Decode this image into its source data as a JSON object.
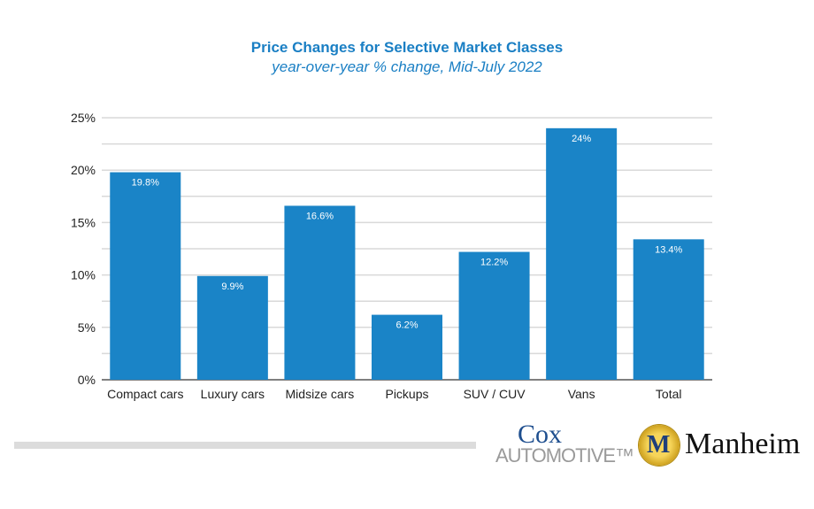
{
  "chart_data": {
    "type": "bar",
    "title": "Price Changes for Selective Market Classes",
    "subtitle": "year-over-year % change, Mid-July 2022",
    "categories": [
      "Compact cars",
      "Luxury cars",
      "Midsize cars",
      "Pickups",
      "SUV / CUV",
      "Vans",
      "Total"
    ],
    "values": [
      19.8,
      9.9,
      16.6,
      6.2,
      12.2,
      24,
      13.4
    ],
    "data_labels": [
      "19.8%",
      "9.9%",
      "16.6%",
      "6.2%",
      "12.2%",
      "24%",
      "13.4%"
    ],
    "ylim": [
      0,
      25
    ],
    "yticks": [
      0,
      5,
      10,
      15,
      20,
      25
    ],
    "ytick_labels": [
      "0%",
      "5%",
      "10%",
      "15%",
      "20%",
      "25%"
    ],
    "minor_grid_step": 2.5,
    "grid": true,
    "bar_color": "#1a84c7",
    "xlabel": "",
    "ylabel": ""
  },
  "logos": {
    "cox_line1": "Cox",
    "cox_line2": "AUTOMOTIVE™",
    "manheim": "Manheim",
    "manheim_medal": "M"
  }
}
